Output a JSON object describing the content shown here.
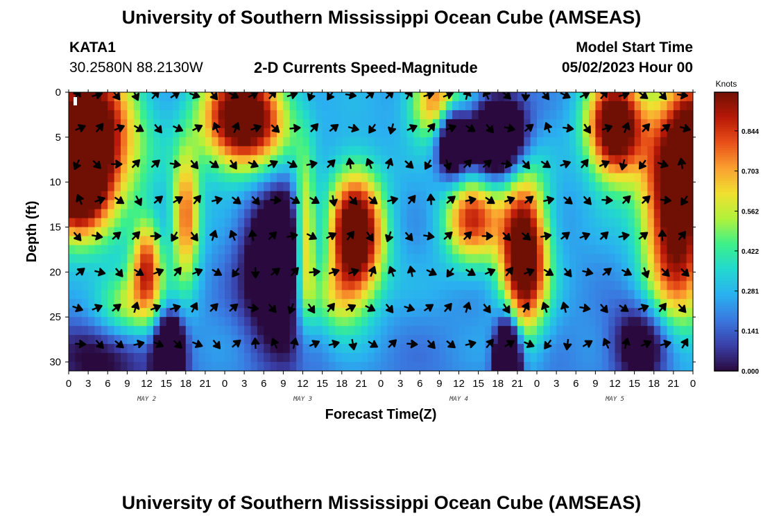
{
  "header": {
    "title": "University of Southern Mississippi Ocean Cube (AMSEAS)",
    "station": "KATA1",
    "coords": "30.2580N  88.2130W",
    "subtitle": "2-D Currents Speed-Magnitude",
    "model_label": "Model Start Time",
    "model_time": "05/02/2023 Hour 00"
  },
  "footer": {
    "title": "University of Southern Mississippi Ocean Cube (AMSEAS)"
  },
  "colors": {
    "scale": [
      "#2a0a3e",
      "#3a3fa8",
      "#3a78e0",
      "#2ab0f0",
      "#22d8d0",
      "#3cf08a",
      "#b0f23c",
      "#f0e030",
      "#fba030",
      "#e85018",
      "#b81808",
      "#701004"
    ]
  },
  "chart_data": {
    "type": "heatmap",
    "title": "2-D Currents Speed-Magnitude",
    "xlabel": "Forecast Time(Z)",
    "ylabel": "Depth (ft)",
    "units": "Knots",
    "x_range": [
      0,
      96
    ],
    "y_range": [
      0,
      31
    ],
    "x_ticks": [
      0,
      3,
      6,
      9,
      12,
      15,
      18,
      21,
      24,
      27,
      30,
      33,
      36,
      39,
      42,
      45,
      48,
      51,
      54,
      57,
      60,
      63,
      66,
      69,
      72,
      75,
      78,
      81,
      84,
      87,
      90,
      93,
      96
    ],
    "x_tick_labels": [
      "0",
      "3",
      "6",
      "9",
      "12",
      "15",
      "18",
      "21",
      "0",
      "3",
      "6",
      "9",
      "12",
      "15",
      "18",
      "21",
      "0",
      "3",
      "6",
      "9",
      "12",
      "15",
      "18",
      "21",
      "0",
      "3",
      "6",
      "9",
      "12",
      "15",
      "18",
      "21",
      "0"
    ],
    "day_labels": [
      {
        "x": 12,
        "label": "MAY 2"
      },
      {
        "x": 36,
        "label": "MAY 3"
      },
      {
        "x": 60,
        "label": "MAY 4"
      },
      {
        "x": 84,
        "label": "MAY 5"
      }
    ],
    "y_ticks": [
      0,
      5,
      10,
      15,
      20,
      25,
      30
    ],
    "y_tick_labels": [
      "0",
      "5",
      "10",
      "15",
      "20",
      "25",
      "30"
    ],
    "colorbar": {
      "min": 0.0,
      "max": 0.98,
      "ticks": [
        0.0,
        0.141,
        0.281,
        0.422,
        0.562,
        0.703,
        0.844
      ],
      "tick_labels": [
        "0.000",
        "0.141",
        "0.281",
        "0.422",
        "0.562",
        "0.703",
        "0.844"
      ]
    },
    "speed_features": [
      {
        "x": 3,
        "y": 5,
        "sx": 5,
        "sy": 6,
        "v": 0.95
      },
      {
        "x": 1,
        "y": 10,
        "sx": 3,
        "sy": 4,
        "v": 0.7
      },
      {
        "x": 12,
        "y": 19,
        "sx": 1.6,
        "sy": 3.5,
        "v": 0.55
      },
      {
        "x": 18,
        "y": 14,
        "sx": 1.5,
        "sy": 5,
        "v": 0.55
      },
      {
        "x": 27,
        "y": 3,
        "sx": 4.5,
        "sy": 4,
        "v": 0.95
      },
      {
        "x": 36.3,
        "y": 17,
        "sx": 1.3,
        "sy": 6,
        "v": 0.75
      },
      {
        "x": 44,
        "y": 16,
        "sx": 3,
        "sy": 5,
        "v": 0.95
      },
      {
        "x": 57,
        "y": 1,
        "sx": 3,
        "sy": 3,
        "v": 0.6
      },
      {
        "x": 62,
        "y": 14,
        "sx": 3,
        "sy": 3.5,
        "v": 0.6
      },
      {
        "x": 70,
        "y": 18,
        "sx": 2.5,
        "sy": 6,
        "v": 0.95
      },
      {
        "x": 84,
        "y": 4,
        "sx": 3,
        "sy": 4,
        "v": 0.95
      },
      {
        "x": 93.5,
        "y": 12,
        "sx": 3.5,
        "sy": 9,
        "v": 0.95
      },
      {
        "x": 96,
        "y": 4,
        "sx": 2,
        "sy": 4,
        "v": 0.4
      },
      {
        "x": 9,
        "y": 24,
        "sx": 4,
        "sy": 3,
        "v": 0.35
      },
      {
        "x": 40,
        "y": 23,
        "sx": 3,
        "sy": 3,
        "v": 0.3
      }
    ],
    "slow_features": [
      {
        "x": 15.5,
        "y": 29.5,
        "sx": 1.4,
        "sy": 3,
        "v": 0.95
      },
      {
        "x": 67.5,
        "y": 29.5,
        "sx": 1.3,
        "sy": 3,
        "v": 0.95
      },
      {
        "x": 66,
        "y": 5,
        "sx": 3,
        "sy": 3,
        "v": 0.75
      },
      {
        "x": 59,
        "y": 5,
        "sx": 1.7,
        "sy": 3,
        "v": 0.7
      },
      {
        "x": 33,
        "y": 19,
        "sx": 4,
        "sy": 6,
        "v": 0.65
      },
      {
        "x": 88,
        "y": 28,
        "sx": 3,
        "sy": 3,
        "v": 0.4
      },
      {
        "x": 5,
        "y": 29,
        "sx": 5,
        "sy": 3,
        "v": 0.3
      }
    ],
    "vector_depths": [
      0,
      4,
      8,
      12,
      16,
      20,
      24,
      28
    ],
    "vector_times": [
      0,
      3,
      6,
      9,
      12,
      15,
      18,
      21,
      24,
      27,
      30,
      33,
      36,
      39,
      42,
      45,
      48,
      51,
      54,
      57,
      60,
      63,
      66,
      69,
      72,
      75,
      78,
      81,
      84,
      87,
      90,
      93
    ]
  }
}
